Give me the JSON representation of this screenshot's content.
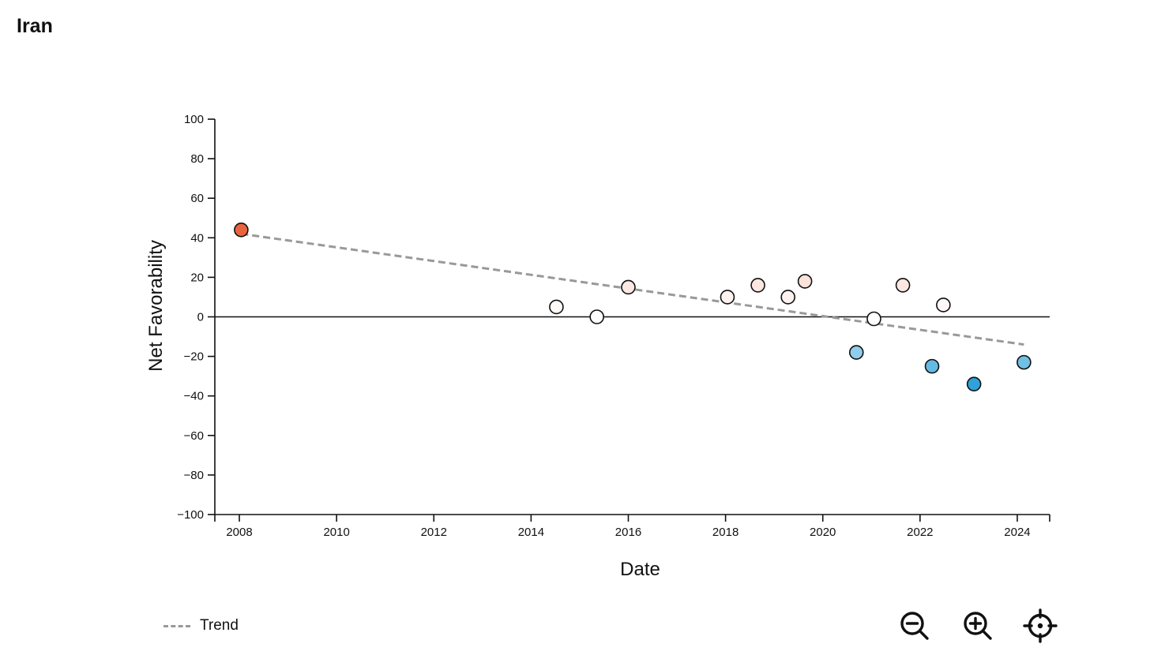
{
  "page": {
    "title": "Iran"
  },
  "legend": {
    "trend_label": "Trend"
  },
  "controls": [
    {
      "name": "zoom-out-button",
      "icon": "zoom-out-icon"
    },
    {
      "name": "zoom-in-button",
      "icon": "zoom-in-icon"
    },
    {
      "name": "recenter-button",
      "icon": "crosshair-icon"
    }
  ],
  "chart_data": {
    "type": "scatter",
    "xlabel": "Date",
    "ylabel": "Net Favorability",
    "xlim": [
      "2007-07-01",
      "2024-09-01"
    ],
    "ylim": [
      -100,
      100
    ],
    "x_ticks": [
      "2008",
      "2010",
      "2012",
      "2014",
      "2016",
      "2018",
      "2020",
      "2022",
      "2024"
    ],
    "y_ticks": [
      100,
      80,
      60,
      40,
      20,
      0,
      -20,
      -40,
      -60,
      -80,
      -100
    ],
    "reference_line": 0,
    "points": [
      {
        "date": "2008-01-15",
        "value": 44
      },
      {
        "date": "2014-07-10",
        "value": 5
      },
      {
        "date": "2015-05-10",
        "value": 0
      },
      {
        "date": "2016-01-01",
        "value": 15
      },
      {
        "date": "2018-01-15",
        "value": 10
      },
      {
        "date": "2018-09-01",
        "value": 16
      },
      {
        "date": "2019-04-15",
        "value": 10
      },
      {
        "date": "2019-08-20",
        "value": 18
      },
      {
        "date": "2020-09-10",
        "value": -18
      },
      {
        "date": "2021-01-20",
        "value": -1
      },
      {
        "date": "2021-08-25",
        "value": 16
      },
      {
        "date": "2022-04-01",
        "value": -25
      },
      {
        "date": "2022-06-25",
        "value": 6
      },
      {
        "date": "2023-02-10",
        "value": -34
      },
      {
        "date": "2024-02-20",
        "value": -23
      }
    ],
    "trend": {
      "start": {
        "date": "2008-01-15",
        "value": 42
      },
      "end": {
        "date": "2024-02-20",
        "value": -14
      }
    },
    "colors": {
      "positive": "#e8643f",
      "negative": "#2aa0d8",
      "neutral": "#ffffff",
      "trend": "#999999"
    },
    "grid": false
  }
}
